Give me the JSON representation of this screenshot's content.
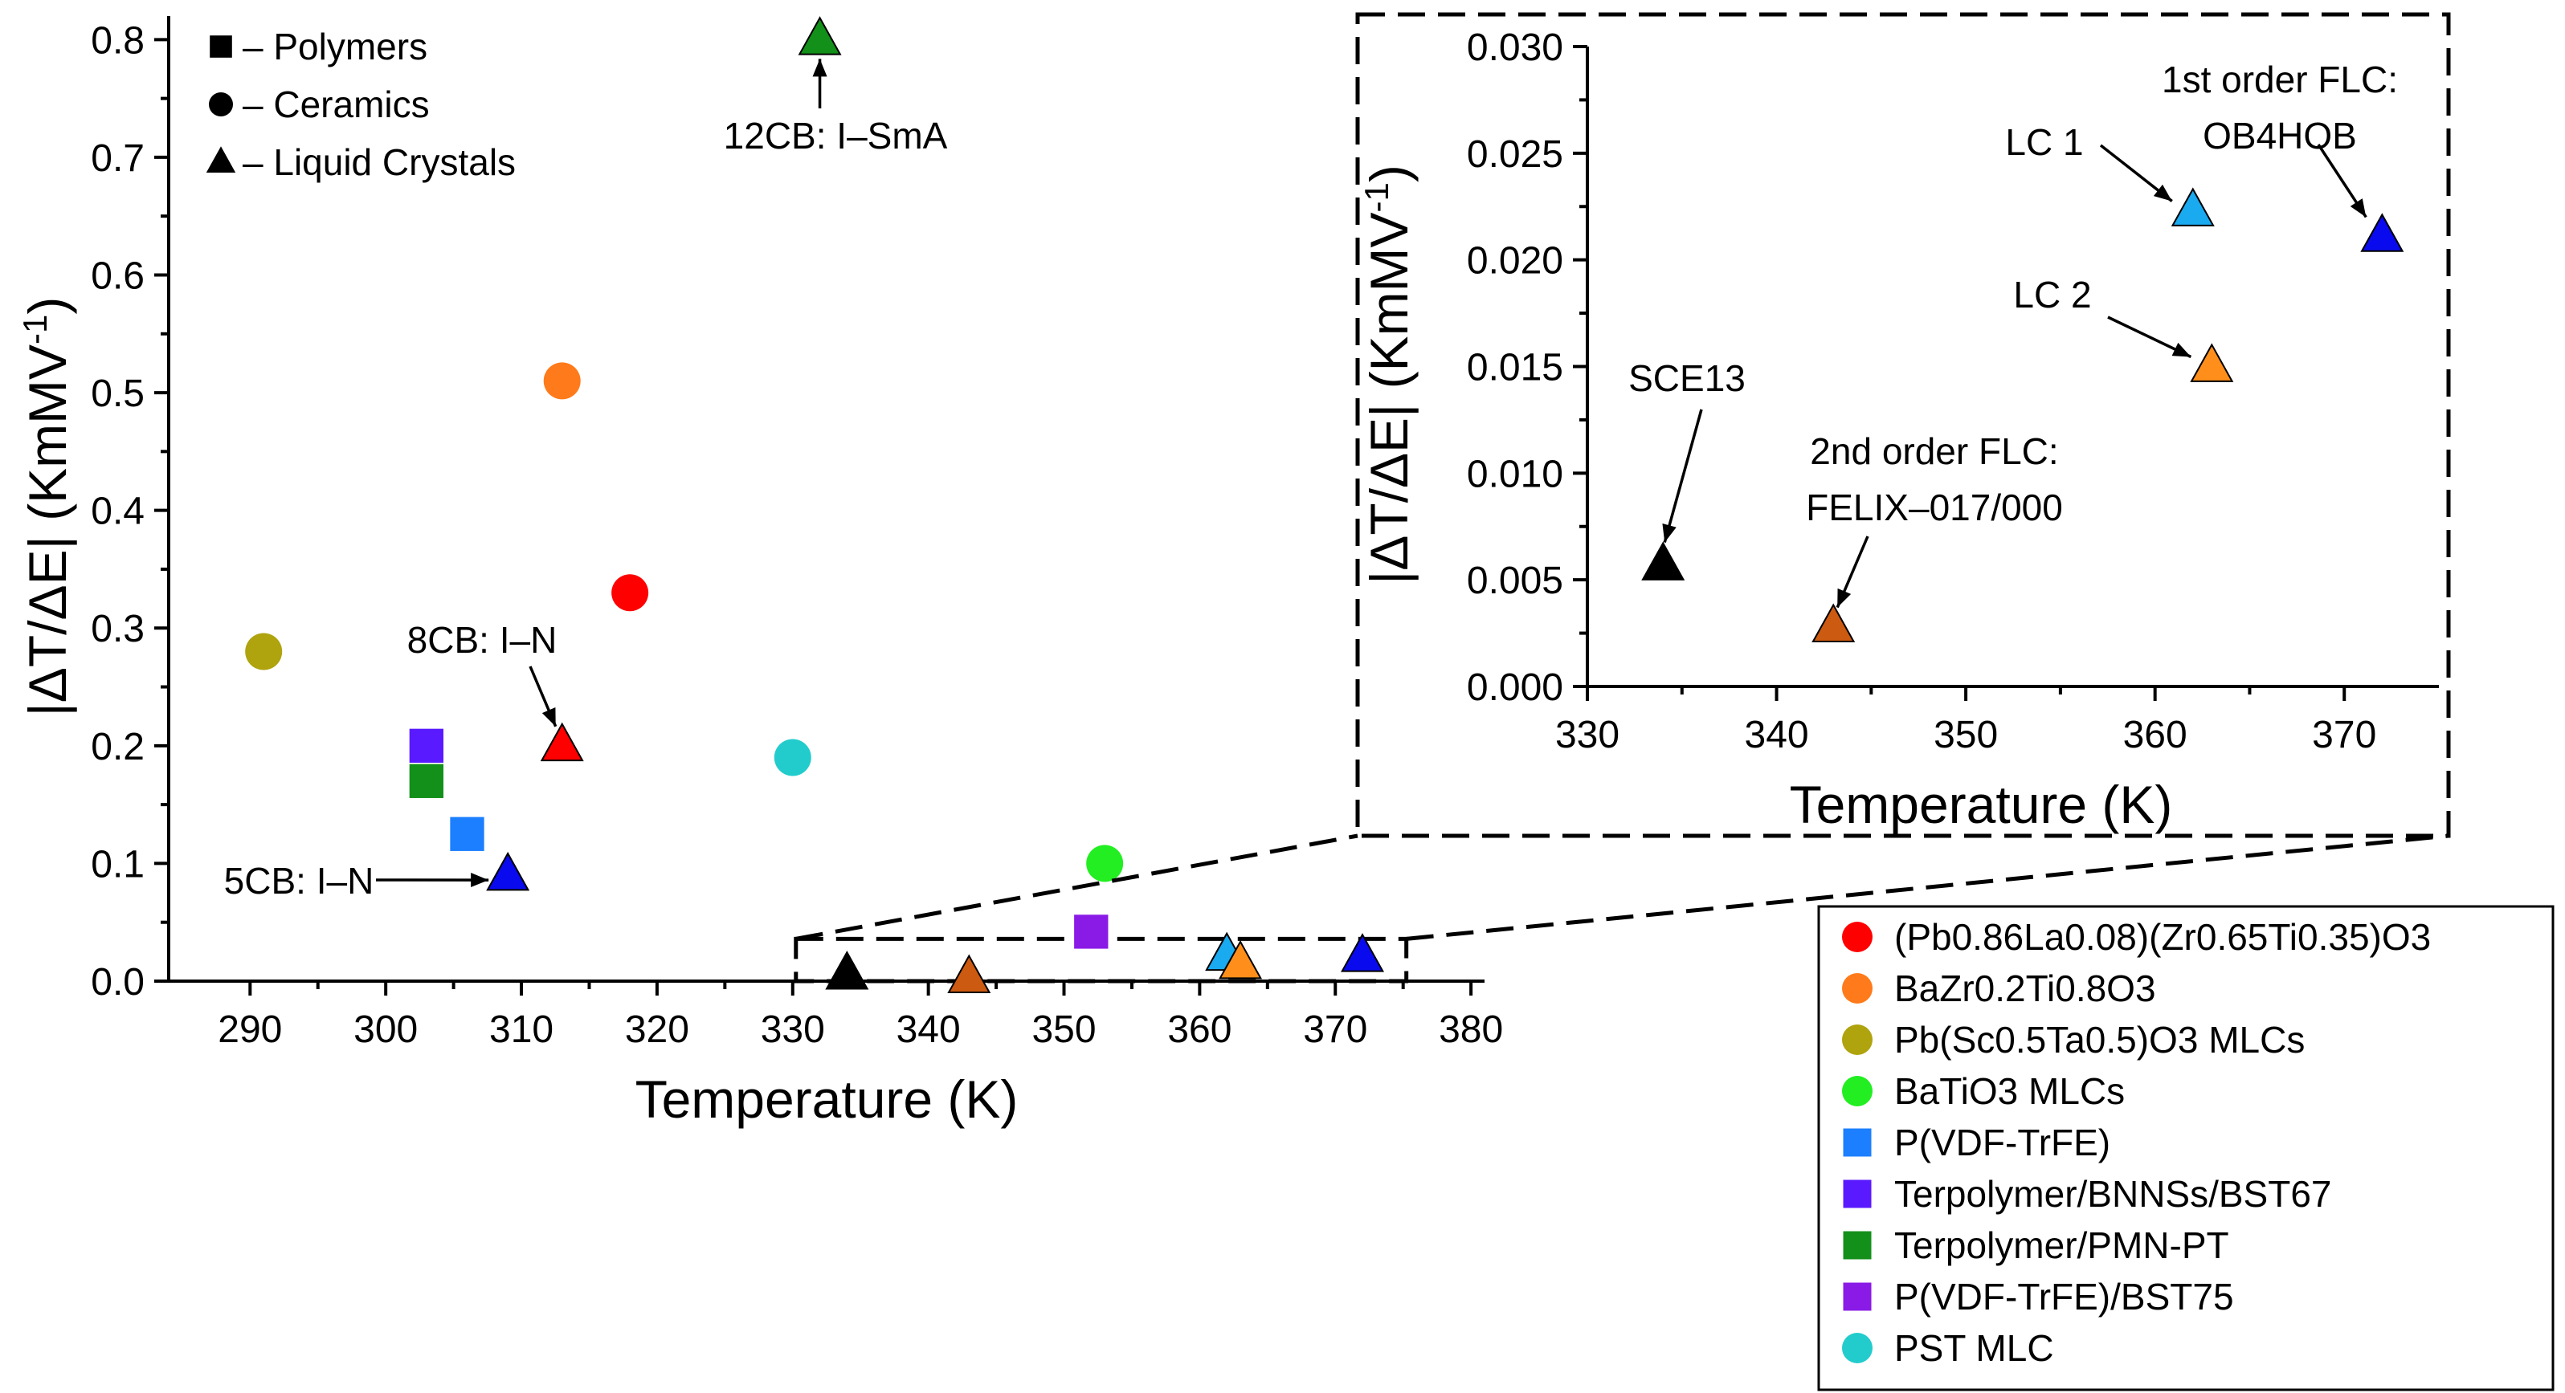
{
  "chart_data": [
    {
      "id": "main",
      "type": "scatter",
      "xlabel": "Temperature (K)",
      "ylabel": "|ΔT/ΔE| (KmMV",
      "ylabel_sup": "-1",
      "ylabel_close": ")",
      "xlim": [
        284,
        381
      ],
      "ylim": [
        0.0,
        0.82
      ],
      "xticks": [
        290,
        300,
        310,
        320,
        330,
        340,
        350,
        360,
        370,
        380
      ],
      "yticks": [
        "0.0",
        "0.1",
        "0.2",
        "0.3",
        "0.4",
        "0.5",
        "0.6",
        "0.7",
        "0.8"
      ],
      "points": [
        {
          "x": 318,
          "y": 0.33,
          "shape": "circle",
          "color": "#ff0000"
        },
        {
          "x": 313,
          "y": 0.51,
          "shape": "circle",
          "color": "#ff7a1a"
        },
        {
          "x": 291,
          "y": 0.28,
          "shape": "circle",
          "color": "#afa30e"
        },
        {
          "x": 353,
          "y": 0.1,
          "shape": "circle",
          "color": "#22ee22"
        },
        {
          "x": 330,
          "y": 0.19,
          "shape": "circle",
          "color": "#22cccc"
        },
        {
          "x": 306,
          "y": 0.125,
          "shape": "square",
          "color": "#1b7fff"
        },
        {
          "x": 303,
          "y": 0.2,
          "shape": "square",
          "color": "#5a1aff"
        },
        {
          "x": 303,
          "y": 0.17,
          "shape": "square",
          "color": "#13901a"
        },
        {
          "x": 352,
          "y": 0.042,
          "shape": "square",
          "color": "#8a1ae6"
        },
        {
          "x": 332,
          "y": 0.8,
          "shape": "triangle",
          "color": "#13901a"
        },
        {
          "x": 313,
          "y": 0.2,
          "shape": "triangle",
          "color": "#ff0000"
        },
        {
          "x": 309,
          "y": 0.09,
          "shape": "triangle",
          "color": "#0a0aee"
        },
        {
          "x": 334,
          "y": 0.006,
          "shape": "triangle",
          "color": "#000000"
        },
        {
          "x": 343,
          "y": 0.003,
          "shape": "triangle",
          "color": "#cc5a10"
        },
        {
          "x": 362,
          "y": 0.022,
          "shape": "triangle",
          "color": "#1aaaf0"
        },
        {
          "x": 363,
          "y": 0.015,
          "shape": "triangle",
          "color": "#ff8f1a"
        },
        {
          "x": 372,
          "y": 0.021,
          "shape": "triangle",
          "color": "#0a0aee"
        }
      ],
      "annotations": [
        {
          "text": "12CB: I–SmA",
          "x": 332,
          "y": 0.8
        },
        {
          "text": "8CB: I–N",
          "x": 313,
          "y": 0.2
        },
        {
          "text": "5CB: I–N",
          "x": 309,
          "y": 0.09
        }
      ],
      "zoom_region": {
        "x": [
          330,
          375
        ],
        "y": [
          0.0,
          0.04
        ]
      },
      "shape_key": [
        {
          "shape": "square",
          "label": "– Polymers"
        },
        {
          "shape": "circle",
          "label": "– Ceramics"
        },
        {
          "shape": "triangle",
          "label": "– Liquid Crystals"
        }
      ]
    },
    {
      "id": "inset",
      "type": "scatter",
      "xlabel": "Temperature (K)",
      "ylabel": "|ΔT/ΔE| (KmMV",
      "ylabel_sup": "-1",
      "ylabel_close": ")",
      "xlim": [
        330,
        375
      ],
      "ylim": [
        0.0,
        0.03
      ],
      "xticks": [
        330,
        340,
        350,
        360,
        370
      ],
      "yticks": [
        "0.000",
        "0.005",
        "0.010",
        "0.015",
        "0.020",
        "0.025",
        "0.030"
      ],
      "points": [
        {
          "x": 334,
          "y": 0.0057,
          "shape": "triangle",
          "color": "#000000"
        },
        {
          "x": 343,
          "y": 0.0028,
          "shape": "triangle",
          "color": "#cc5a10"
        },
        {
          "x": 362,
          "y": 0.0223,
          "shape": "triangle",
          "color": "#1aaaf0"
        },
        {
          "x": 363,
          "y": 0.015,
          "shape": "triangle",
          "color": "#ff8f1a"
        },
        {
          "x": 372,
          "y": 0.0211,
          "shape": "triangle",
          "color": "#0a0aee"
        }
      ],
      "annotations": [
        {
          "lines": [
            "SCE13"
          ],
          "x": 334,
          "y": 0.0057
        },
        {
          "lines": [
            "2nd order FLC:",
            "FELIX–017/000"
          ],
          "x": 343,
          "y": 0.0028
        },
        {
          "lines": [
            "LC 1"
          ],
          "x": 362,
          "y": 0.0223
        },
        {
          "lines": [
            "LC 2"
          ],
          "x": 363,
          "y": 0.015
        },
        {
          "lines": [
            "1st order FLC:",
            "OB4HOB"
          ],
          "x": 372,
          "y": 0.0211
        }
      ]
    }
  ],
  "legend": [
    {
      "label": "(Pb0.86La0.08)(Zr0.65Ti0.35)O3",
      "shape": "circle",
      "color": "#ff0000"
    },
    {
      "label": "BaZr0.2Ti0.8O3",
      "shape": "circle",
      "color": "#ff7a1a"
    },
    {
      "label": "Pb(Sc0.5Ta0.5)O3 MLCs",
      "shape": "circle",
      "color": "#afa30e"
    },
    {
      "label": "BaTiO3 MLCs",
      "shape": "circle",
      "color": "#22ee22"
    },
    {
      "label": "P(VDF-TrFE)",
      "shape": "square",
      "color": "#1b7fff"
    },
    {
      "label": "Terpolymer/BNNSs/BST67",
      "shape": "square",
      "color": "#5a1aff"
    },
    {
      "label": "Terpolymer/PMN-PT",
      "shape": "square",
      "color": "#13901a"
    },
    {
      "label": "P(VDF-TrFE)/BST75",
      "shape": "square",
      "color": "#8a1ae6"
    },
    {
      "label": "PST MLC",
      "shape": "circle",
      "color": "#22cccc"
    }
  ]
}
